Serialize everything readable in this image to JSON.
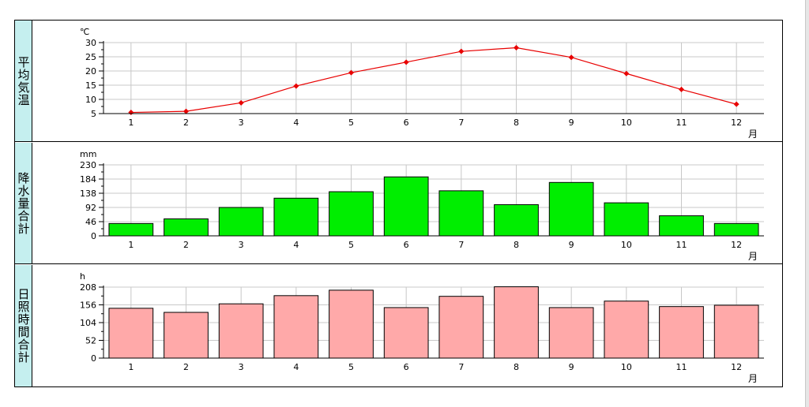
{
  "chart_data": [
    {
      "type": "line",
      "row_label": "平均気温",
      "unit": "℃",
      "x_unit": "月",
      "categories": [
        "1",
        "2",
        "3",
        "4",
        "5",
        "6",
        "7",
        "8",
        "9",
        "10",
        "11",
        "12"
      ],
      "values": [
        5.4,
        5.8,
        8.8,
        14.7,
        19.4,
        23.1,
        26.9,
        28.2,
        24.8,
        19.1,
        13.5,
        8.3
      ],
      "yticks": [
        5,
        10,
        15,
        20,
        25,
        30
      ],
      "ylim": [
        5,
        30
      ],
      "grid": true,
      "color": "#e80000"
    },
    {
      "type": "bar",
      "row_label": "降水量合計",
      "unit": "mm",
      "x_unit": "月",
      "categories": [
        "1",
        "2",
        "3",
        "4",
        "5",
        "6",
        "7",
        "8",
        "9",
        "10",
        "11",
        "12"
      ],
      "values": [
        40,
        55,
        92,
        122,
        143,
        191,
        146,
        101,
        173,
        107,
        65,
        40
      ],
      "yticks": [
        0,
        46,
        92,
        138,
        184,
        230
      ],
      "ylim": [
        0,
        230
      ],
      "grid": true,
      "color": "#00ee00"
    },
    {
      "type": "bar",
      "row_label": "日照時間合計",
      "unit": "h",
      "x_unit": "月",
      "categories": [
        "1",
        "2",
        "3",
        "4",
        "5",
        "6",
        "7",
        "8",
        "9",
        "10",
        "11",
        "12"
      ],
      "values": [
        146,
        134,
        159,
        183,
        199,
        148,
        181,
        209,
        148,
        167,
        151,
        155
      ],
      "yticks": [
        0,
        52,
        104,
        156,
        208
      ],
      "ylim": [
        0,
        208
      ],
      "grid": true,
      "color": "#ffa9a9"
    }
  ]
}
